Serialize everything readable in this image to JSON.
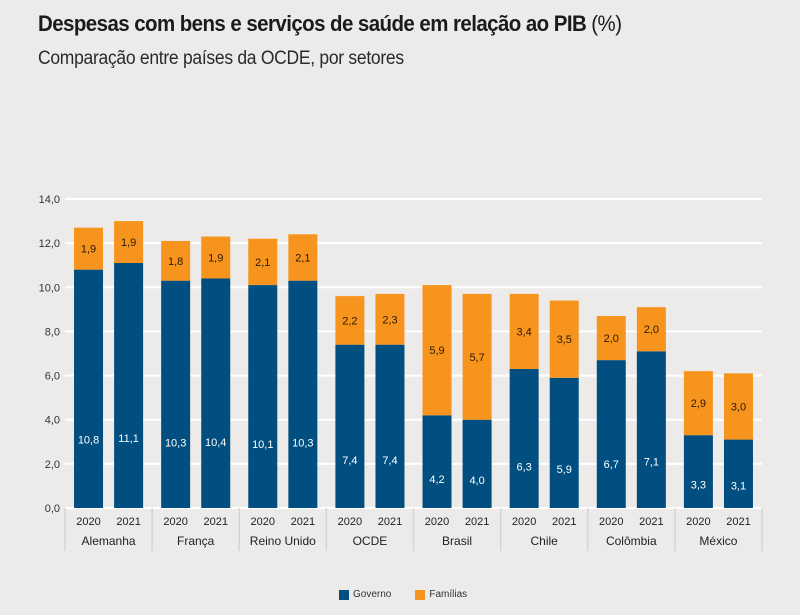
{
  "chart_data": {
    "type": "bar",
    "stacked": true,
    "title": "Despesas com bens e serviços de saúde em relação ao PIB",
    "title_unit": "(%)",
    "subtitle": "Comparação entre países da OCDE, por setores",
    "xlabel": "",
    "ylabel": "",
    "ylim": [
      0,
      14
    ],
    "yticks": [
      0,
      2,
      4,
      6,
      8,
      10,
      12,
      14
    ],
    "ytick_labels": [
      "0,0",
      "2,0",
      "4,0",
      "6,0",
      "8,0",
      "10,0",
      "12,0",
      "14,0"
    ],
    "grid": true,
    "legend_position": "bottom",
    "groups": [
      {
        "name": "Alemanha",
        "years": [
          "2020",
          "2021"
        ]
      },
      {
        "name": "França",
        "years": [
          "2020",
          "2021"
        ]
      },
      {
        "name": "Reino Unido",
        "years": [
          "2020",
          "2021"
        ]
      },
      {
        "name": "OCDE",
        "years": [
          "2020",
          "2021"
        ]
      },
      {
        "name": "Brasil",
        "years": [
          "2020",
          "2021"
        ]
      },
      {
        "name": "Chile",
        "years": [
          "2020",
          "2021"
        ]
      },
      {
        "name": "Colômbia",
        "years": [
          "2020",
          "2021"
        ]
      },
      {
        "name": "México",
        "years": [
          "2020",
          "2021"
        ]
      }
    ],
    "series": [
      {
        "name": "Governo",
        "color": "#004f80",
        "values": [
          10.8,
          11.1,
          10.3,
          10.4,
          10.1,
          10.3,
          7.4,
          7.4,
          4.2,
          4.0,
          6.3,
          5.9,
          6.7,
          7.1,
          3.3,
          3.1
        ],
        "labels": [
          "10,8",
          "11,1",
          "10,3",
          "10,4",
          "10,1",
          "10,3",
          "7,4",
          "7,4",
          "4,2",
          "4,0",
          "6,3",
          "5,9",
          "6,7",
          "7,1",
          "3,3",
          "3,1"
        ]
      },
      {
        "name": "Famílias",
        "color": "#f7941d",
        "values": [
          1.9,
          1.9,
          1.8,
          1.9,
          2.1,
          2.1,
          2.2,
          2.3,
          5.9,
          5.7,
          3.4,
          3.5,
          2.0,
          2.0,
          2.9,
          3.0
        ],
        "labels": [
          "1,9",
          "1,9",
          "1,8",
          "1,9",
          "2,1",
          "2,1",
          "2,2",
          "2,3",
          "5,9",
          "5,7",
          "3,4",
          "3,5",
          "2,0",
          "2,0",
          "2,9",
          "3,0"
        ]
      }
    ]
  }
}
